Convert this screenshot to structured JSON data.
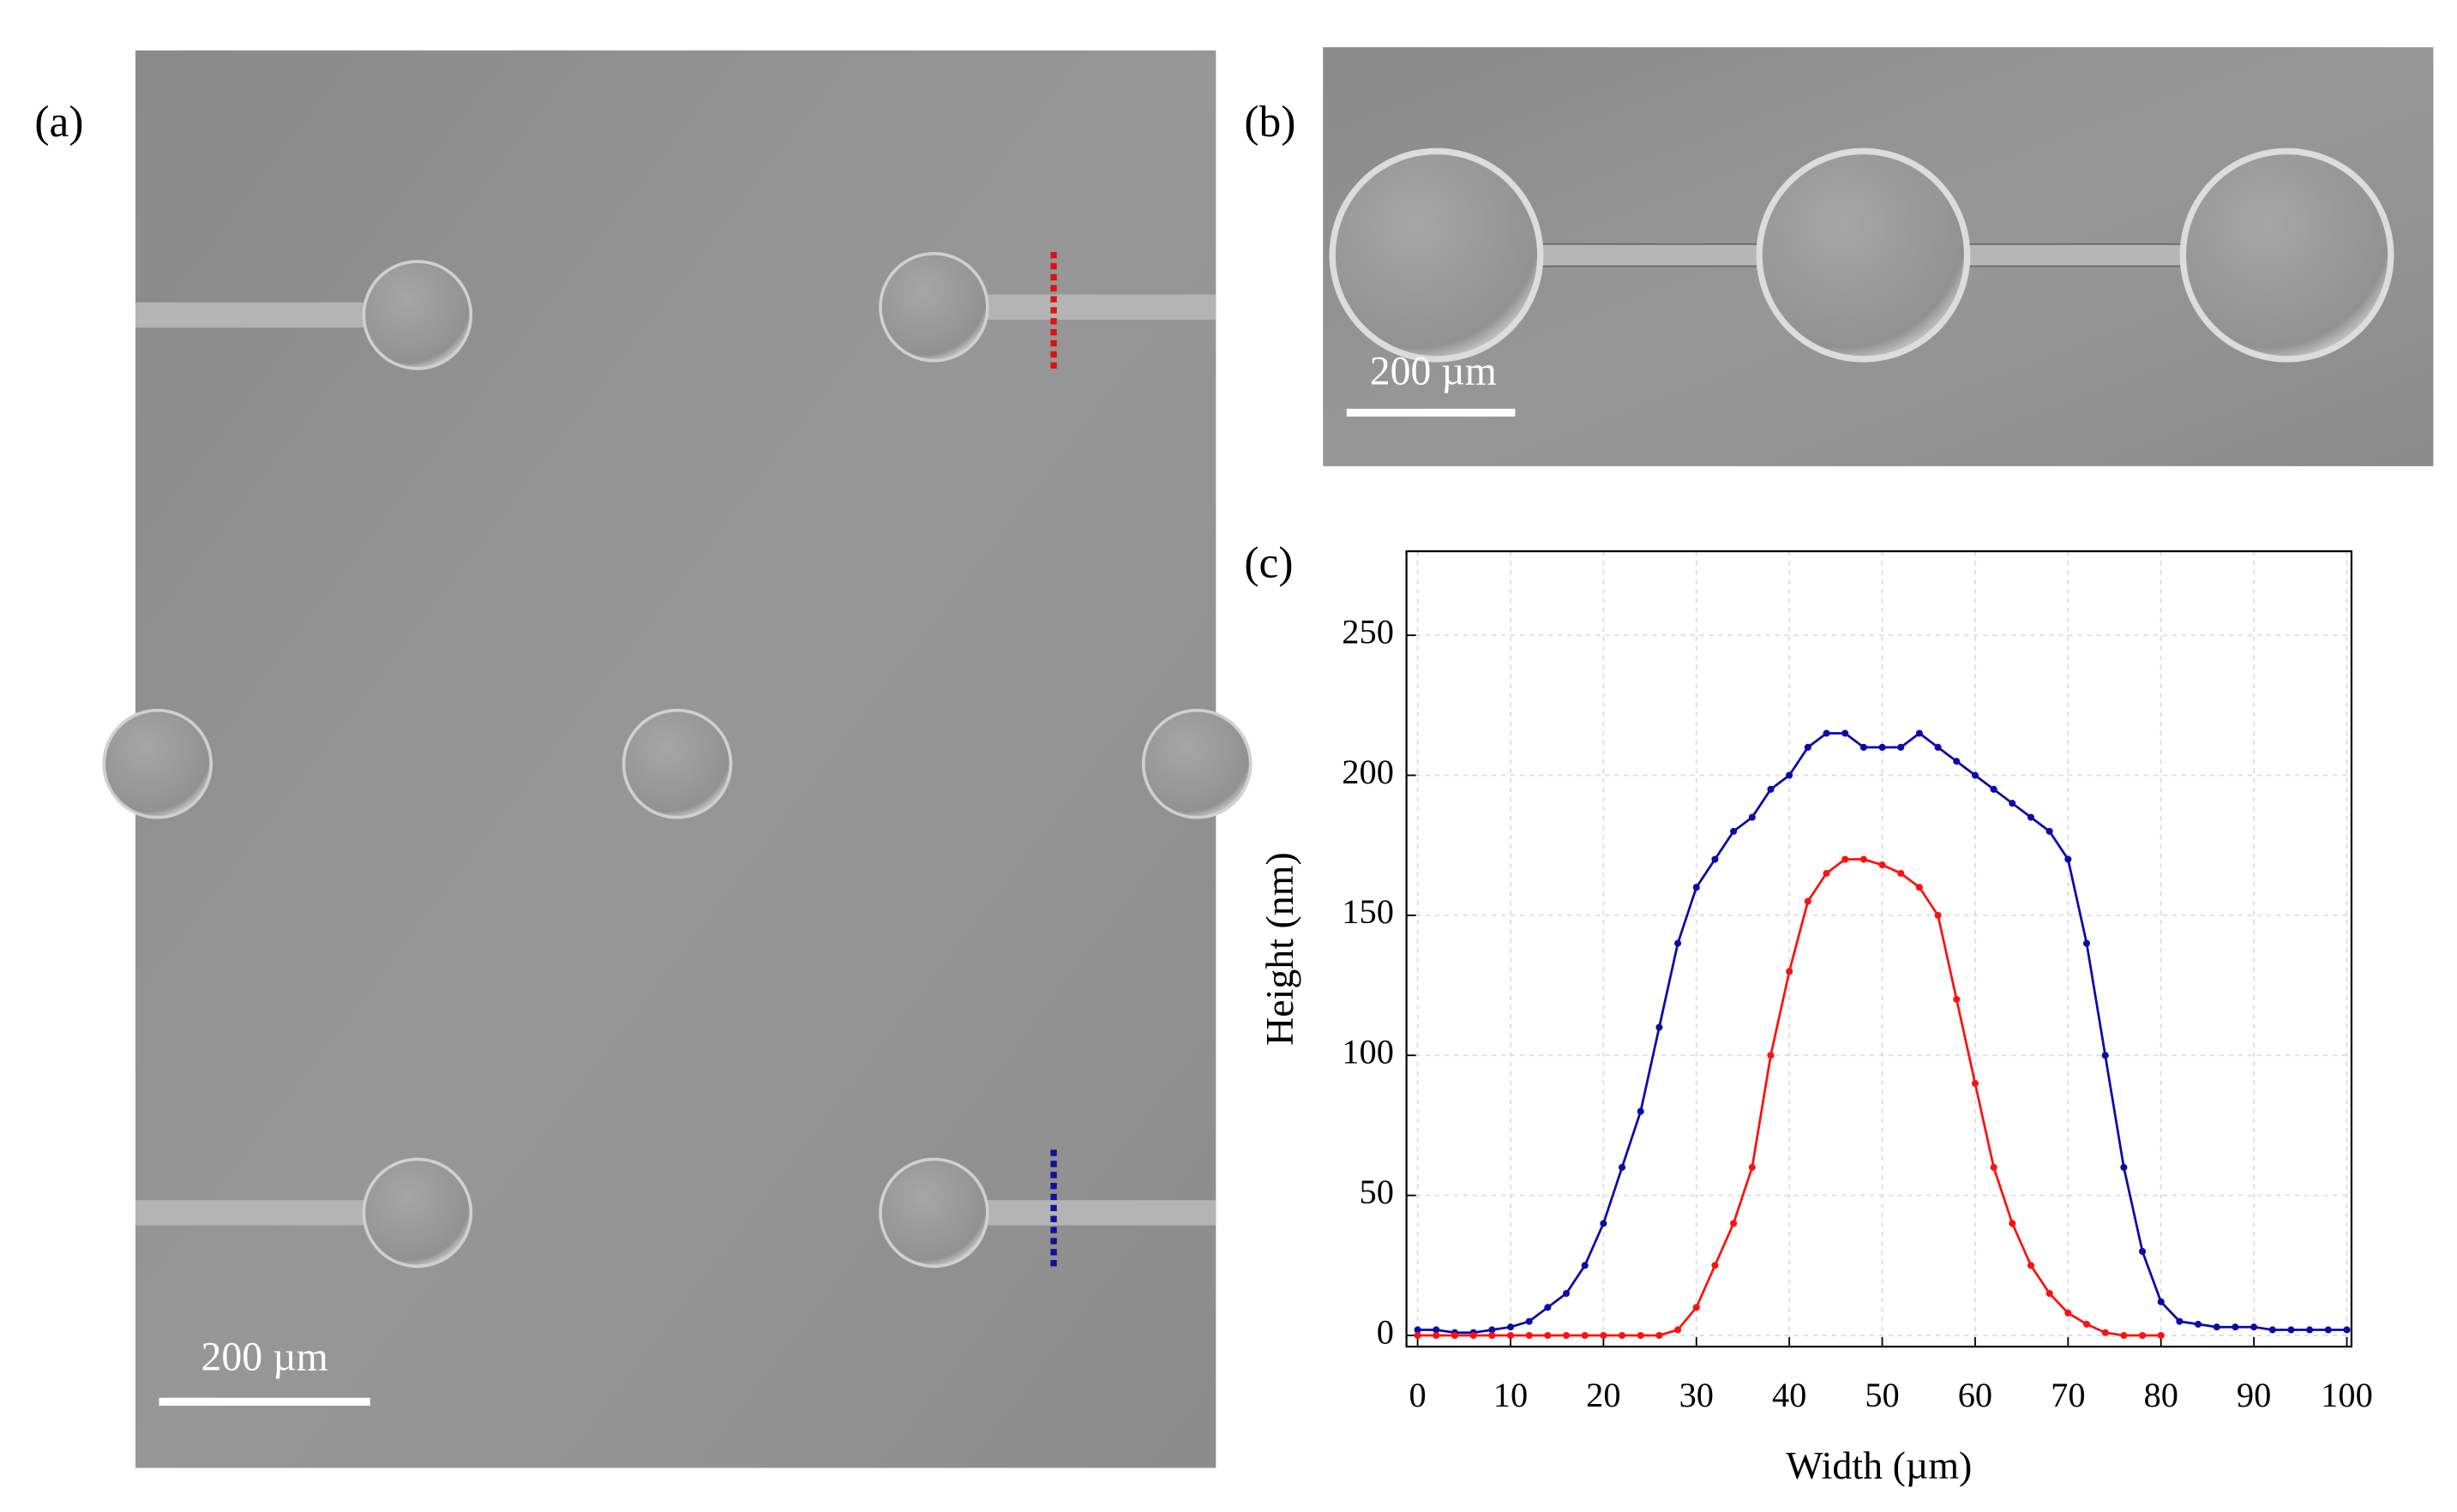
{
  "panel_labels": [
    "(a)",
    "(b)",
    "(c)"
  ],
  "scale_bars": [
    "200 µm",
    "200 µm"
  ],
  "chart_data": {
    "type": "line",
    "x_label": "Width (µm)",
    "y_label": "Height (nm)",
    "x": [
      0,
      2,
      4,
      6,
      8,
      10,
      12,
      14,
      16,
      18,
      20,
      22,
      24,
      26,
      28,
      30,
      32,
      34,
      36,
      38,
      40,
      42,
      44,
      46,
      48,
      50,
      52,
      54,
      56,
      58,
      60,
      62,
      64,
      66,
      68,
      70,
      72,
      74,
      76,
      78,
      80,
      82,
      84,
      86,
      88,
      90,
      92,
      94,
      96,
      98,
      100
    ],
    "series": [
      {
        "color": "#0a0aa8",
        "values": [
          2,
          2,
          1,
          1,
          2,
          3,
          5,
          10,
          15,
          25,
          40,
          60,
          80,
          110,
          140,
          160,
          170,
          180,
          185,
          195,
          200,
          210,
          215,
          215,
          210,
          210,
          210,
          215,
          210,
          205,
          200,
          195,
          190,
          185,
          180,
          170,
          140,
          100,
          60,
          30,
          12,
          5,
          4,
          3,
          3,
          3,
          2,
          2,
          2,
          2,
          2
        ]
      },
      {
        "color": "#ff1010",
        "values": [
          0,
          0,
          0,
          0,
          0,
          0,
          0,
          0,
          0,
          0,
          0,
          0,
          0,
          0,
          2,
          10,
          25,
          40,
          60,
          100,
          130,
          155,
          165,
          170,
          170,
          168,
          165,
          160,
          150,
          120,
          90,
          60,
          40,
          25,
          15,
          8,
          4,
          1,
          0,
          0,
          0,
          null,
          null,
          null,
          null,
          null,
          null,
          null,
          null,
          null,
          null
        ]
      }
    ],
    "xlim": [
      -1.2,
      100.5
    ],
    "ylim": [
      -4,
      280
    ],
    "xticks": [
      0,
      10,
      20,
      30,
      40,
      50,
      60,
      70,
      80,
      90,
      100
    ],
    "yticks": [
      0,
      50,
      100,
      150,
      200,
      250
    ],
    "grid": true
  }
}
